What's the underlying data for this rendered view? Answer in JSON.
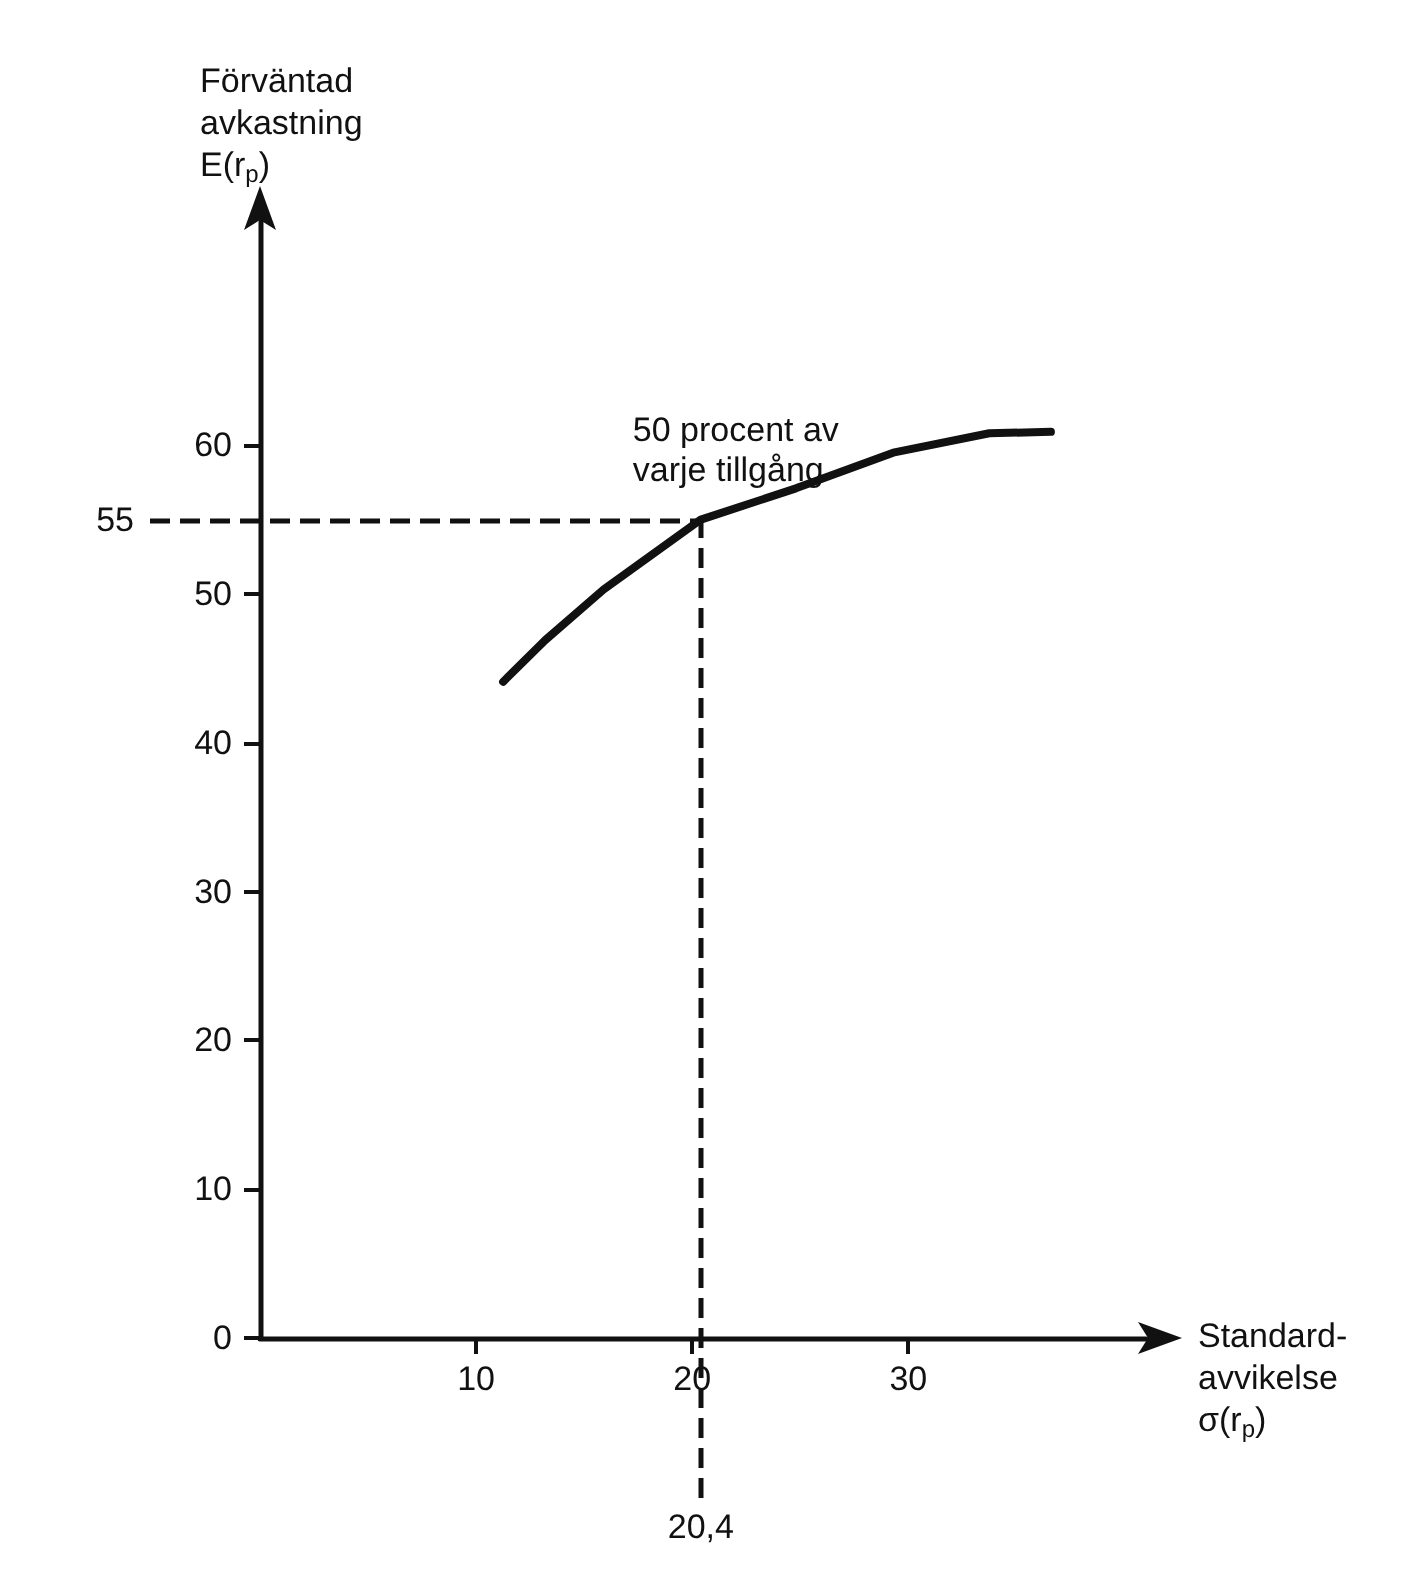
{
  "chart_data": {
    "type": "line",
    "ylabel": "Förväntad\navkastning\nE(r$_{p}$)",
    "xlabel": "Standard-\navvikelse\nσ(r$_{p}$)",
    "x": [
      11.25,
      13.2,
      15.9,
      20.4,
      24.8,
      29.3,
      33.75,
      36.6
    ],
    "values": [
      44.1,
      46.9,
      50.3,
      55,
      57.1,
      59.5,
      60.8,
      60.9
    ],
    "color": "#111111",
    "xlim": [
      0,
      41
    ],
    "ylim": [
      0,
      75
    ],
    "xticks": [
      10,
      20,
      30
    ],
    "yticks": [
      0,
      10,
      20,
      30,
      40,
      50,
      60
    ],
    "ref_lines": [
      {
        "axis": "y",
        "value": 55,
        "label": "55",
        "line_style": "dashed"
      },
      {
        "axis": "x",
        "value": 20.4,
        "label": "20,4",
        "line_style": "dashed"
      }
    ],
    "annotations": [
      {
        "text": "50 procent av\nvarje tillgång",
        "x": 20.4,
        "y": 55
      }
    ],
    "marker": "none",
    "line_style": "solid"
  }
}
